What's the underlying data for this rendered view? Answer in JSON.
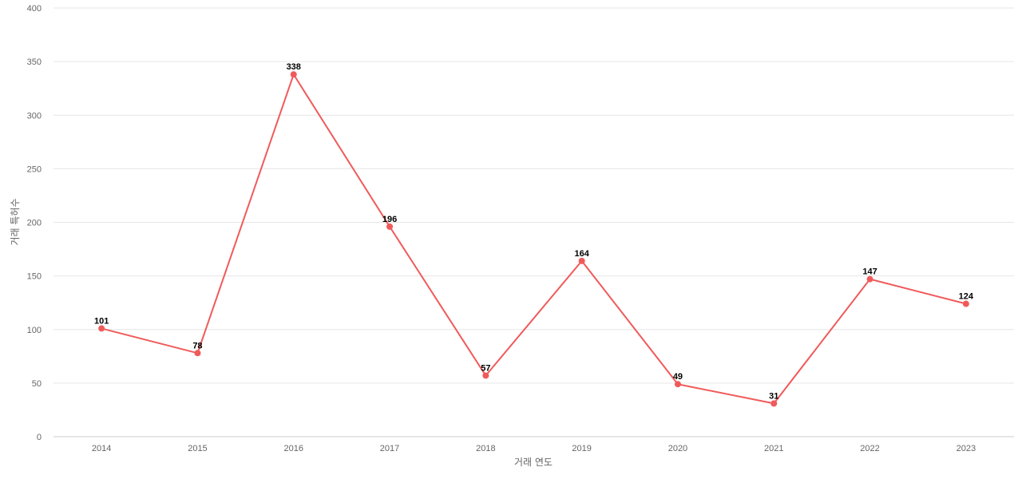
{
  "chart_data": {
    "type": "line",
    "title": "",
    "xlabel": "거래 연도",
    "ylabel": "거래 특허수",
    "ylim": [
      0,
      400
    ],
    "yticks": [
      0,
      50,
      100,
      150,
      200,
      250,
      300,
      350,
      400
    ],
    "categories": [
      "2014",
      "2015",
      "2016",
      "2017",
      "2018",
      "2019",
      "2020",
      "2021",
      "2022",
      "2023"
    ],
    "series": [
      {
        "values": [
          101,
          78,
          338,
          196,
          57,
          164,
          49,
          31,
          147,
          124
        ]
      }
    ],
    "grid": true,
    "legend": "none",
    "colors": {
      "line": "#f05a5a",
      "grid": "#e6e6e6",
      "axis": "#cccccc"
    }
  }
}
